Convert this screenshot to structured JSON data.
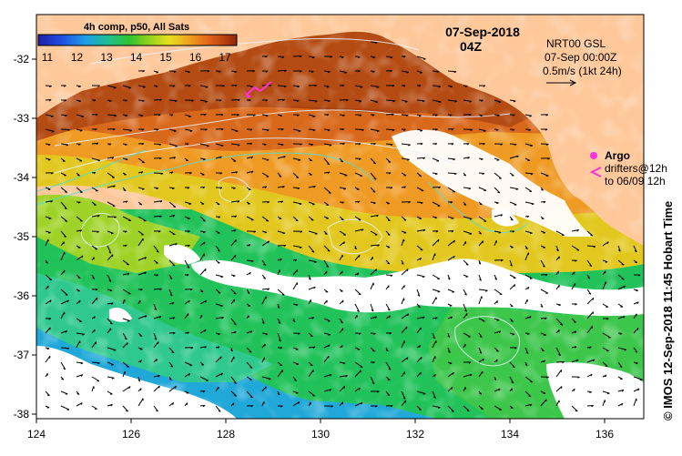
{
  "map": {
    "date_title": "07-Sep-2018",
    "time_title": "04Z",
    "colorbar": {
      "title": "4h comp, p50, All Sats",
      "ticks": [
        "11",
        "12",
        "13",
        "14",
        "15",
        "16",
        "17"
      ],
      "colors": [
        "#1f1fa8",
        "#1f4fe0",
        "#1f9fe6",
        "#22c08a",
        "#2fc230",
        "#96d21c",
        "#e8e01e",
        "#f0a020",
        "#e06418",
        "#b8400f",
        "#8f260a"
      ]
    },
    "current_legend": {
      "product": "NRT00 GSL",
      "time": "07-Sep 00:00Z",
      "scale": "0.5m/s (1kt 24h)"
    },
    "argo_legend": {
      "argo_label": "Argo",
      "drifter_line1": "drifters@12h",
      "drifter_line2": "to 06/09 12h"
    },
    "credit": "© IMOS 12-Sep-2018 11:45 Hobart Time",
    "land_color": "#fec89a",
    "x_ticks": [
      "124",
      "126",
      "128",
      "130",
      "132",
      "134",
      "136"
    ],
    "y_ticks": [
      "-32",
      "-33",
      "-34",
      "-35",
      "-36",
      "-37",
      "-38"
    ]
  }
}
